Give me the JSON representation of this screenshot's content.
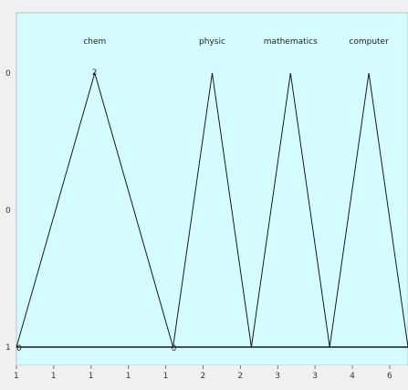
{
  "chart_data": {
    "type": "line",
    "title": "",
    "xlabel": "",
    "ylabel": "",
    "xlim": [
      0,
      10
    ],
    "ylim": [
      0,
      1
    ],
    "x_ticks": [
      "1",
      "1",
      "1",
      "1",
      "1",
      "2",
      "2",
      "3",
      "3",
      "4",
      "6"
    ],
    "y_ticks": [
      "0",
      "0",
      "1"
    ],
    "grid": false,
    "background": "#d4fbff",
    "line_color": "#1a1a1a",
    "series": [
      {
        "name": "chem",
        "x": [
          0,
          2,
          4
        ],
        "y": [
          0,
          1,
          0
        ]
      },
      {
        "name": "physic",
        "x": [
          4,
          5,
          6
        ],
        "y": [
          0,
          1,
          0
        ]
      },
      {
        "name": "mathematics",
        "x": [
          6,
          7,
          8
        ],
        "y": [
          0,
          1,
          0
        ]
      },
      {
        "name": "computer",
        "x": [
          8,
          9,
          10
        ],
        "y": [
          0,
          1,
          0
        ]
      }
    ],
    "peak_marker": "2",
    "base_markers": [
      "0",
      "0"
    ]
  }
}
